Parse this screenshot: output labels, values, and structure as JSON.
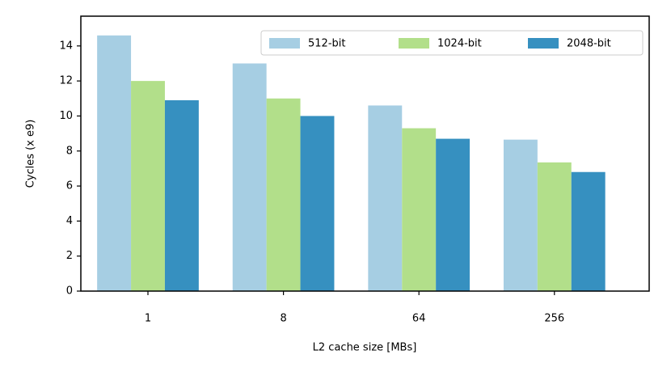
{
  "chart_data": {
    "type": "bar",
    "xlabel": "L2 cache size [MBs]",
    "ylabel": "Cycles (x e9)",
    "categories": [
      "1",
      "8",
      "64",
      "256"
    ],
    "series": [
      {
        "name": "512-bit",
        "color": "#a6cee3",
        "values": [
          14.6,
          13.0,
          10.6,
          8.65
        ]
      },
      {
        "name": "1024-bit",
        "color": "#b2df8a",
        "values": [
          12.0,
          11.0,
          9.3,
          7.35
        ]
      },
      {
        "name": "2048-bit",
        "color": "#3690c0",
        "values": [
          10.9,
          10.0,
          8.7,
          6.8
        ]
      }
    ],
    "ylim": [
      0,
      15.7
    ],
    "yticks": [
      0,
      2,
      4,
      6,
      8,
      10,
      12,
      14
    ],
    "legend": "upper right"
  }
}
